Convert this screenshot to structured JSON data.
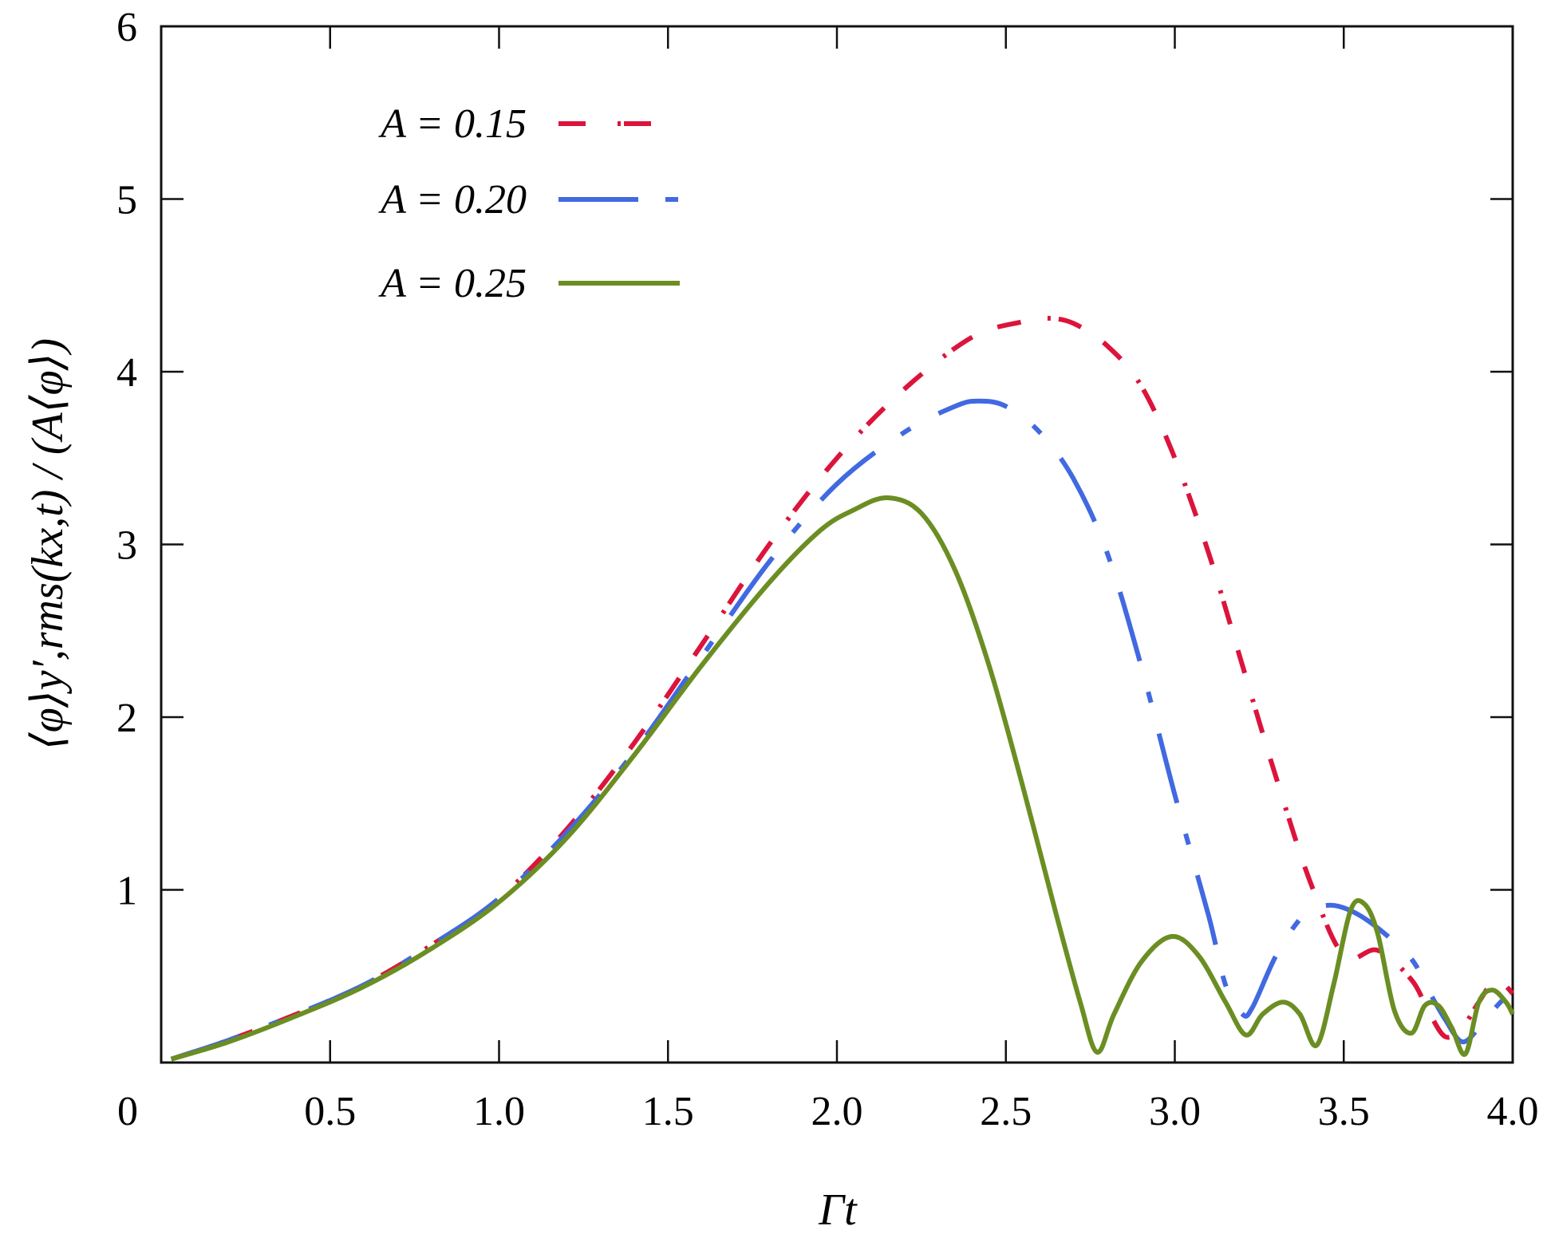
{
  "chart_data": {
    "type": "line",
    "title": "",
    "xlabel": "Γt",
    "ylabel": "⟨φ⟩_{y′,rms}(k_x,t) / (A⟨φ⟩)",
    "xlim": [
      0,
      4.0
    ],
    "ylim": [
      0,
      6
    ],
    "xticks": [
      0,
      0.5,
      1.0,
      1.5,
      2.0,
      2.5,
      3.0,
      3.5,
      4.0
    ],
    "xtick_labels": [
      "0",
      "0.5",
      "1.0",
      "1.5",
      "2.0",
      "2.5",
      "3.0",
      "3.5",
      "4.0"
    ],
    "yticks": [
      1,
      2,
      3,
      4,
      5,
      6
    ],
    "ytick_labels": [
      "1",
      "2",
      "3",
      "4",
      "5",
      "6"
    ],
    "grid": false,
    "legend_position": "upper-left",
    "series": [
      {
        "name": "A = 0.15",
        "color": "#dc143c",
        "style": "dash-dot",
        "x": [
          0.03,
          0.2,
          0.4,
          0.6,
          0.8,
          1.0,
          1.2,
          1.4,
          1.6,
          1.8,
          2.0,
          2.2,
          2.4,
          2.55,
          2.62,
          2.7,
          2.8,
          2.9,
          3.0,
          3.1,
          3.2,
          3.3,
          3.4,
          3.5,
          3.6,
          3.7,
          3.75,
          3.8,
          3.85,
          3.9,
          3.95,
          4.0
        ],
        "y": [
          0.02,
          0.13,
          0.28,
          0.45,
          0.68,
          0.95,
          1.35,
          1.85,
          2.42,
          3.0,
          3.5,
          3.9,
          4.2,
          4.29,
          4.31,
          4.28,
          4.15,
          3.92,
          3.5,
          2.95,
          2.3,
          1.65,
          1.05,
          0.62,
          0.65,
          0.48,
          0.3,
          0.15,
          0.2,
          0.35,
          0.48,
          0.4
        ]
      },
      {
        "name": "A = 0.20",
        "color": "#4169e1",
        "style": "long-dash-short-dash",
        "x": [
          0.03,
          0.2,
          0.4,
          0.6,
          0.8,
          1.0,
          1.2,
          1.4,
          1.6,
          1.8,
          2.0,
          2.2,
          2.35,
          2.42,
          2.5,
          2.6,
          2.7,
          2.8,
          2.9,
          3.0,
          3.1,
          3.15,
          3.2,
          3.23,
          3.3,
          3.38,
          3.45,
          3.52,
          3.6,
          3.7,
          3.75,
          3.8,
          3.85,
          3.9,
          3.95,
          4.0
        ],
        "y": [
          0.02,
          0.13,
          0.28,
          0.45,
          0.68,
          0.95,
          1.33,
          1.8,
          2.35,
          2.9,
          3.35,
          3.65,
          3.8,
          3.83,
          3.8,
          3.65,
          3.38,
          2.95,
          2.3,
          1.55,
          0.85,
          0.45,
          0.28,
          0.32,
          0.62,
          0.85,
          0.91,
          0.88,
          0.78,
          0.6,
          0.42,
          0.25,
          0.12,
          0.2,
          0.32,
          0.42
        ]
      },
      {
        "name": "A = 0.25",
        "color": "#6b8e23",
        "style": "solid",
        "x": [
          0.03,
          0.2,
          0.4,
          0.6,
          0.8,
          1.0,
          1.2,
          1.4,
          1.6,
          1.8,
          1.95,
          2.05,
          2.15,
          2.25,
          2.35,
          2.45,
          2.55,
          2.65,
          2.72,
          2.77,
          2.82,
          2.9,
          2.99,
          3.07,
          3.15,
          3.21,
          3.26,
          3.32,
          3.37,
          3.42,
          3.47,
          3.52,
          3.56,
          3.6,
          3.65,
          3.7,
          3.74,
          3.78,
          3.82,
          3.86,
          3.9,
          3.94,
          3.98,
          4.0
        ],
        "y": [
          0.02,
          0.12,
          0.27,
          0.44,
          0.66,
          0.93,
          1.3,
          1.78,
          2.3,
          2.78,
          3.08,
          3.2,
          3.27,
          3.18,
          2.85,
          2.3,
          1.6,
          0.85,
          0.35,
          0.06,
          0.28,
          0.58,
          0.73,
          0.62,
          0.35,
          0.16,
          0.28,
          0.35,
          0.28,
          0.1,
          0.45,
          0.88,
          0.92,
          0.75,
          0.3,
          0.17,
          0.33,
          0.33,
          0.2,
          0.05,
          0.35,
          0.42,
          0.35,
          0.28
        ]
      }
    ]
  },
  "axes": {
    "x_label_main": "Γ",
    "x_label_var": "t",
    "y_label_text": "⟨φ⟩y′,rms(kx,t) / (A⟨φ⟩)"
  },
  "legend": {
    "items": [
      {
        "label": "A = 0.15",
        "color": "#dc143c"
      },
      {
        "label": "A = 0.20",
        "color": "#4169e1"
      },
      {
        "label": "A = 0.25",
        "color": "#6b8e23"
      }
    ]
  }
}
